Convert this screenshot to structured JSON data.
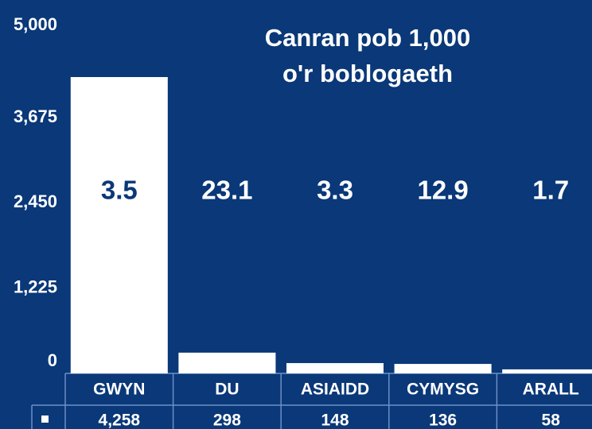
{
  "chart_data": {
    "type": "bar",
    "title": [
      "Canran pob 1,000",
      "o'r boblogaeth"
    ],
    "categories": [
      "GWYN",
      "DU",
      "ASIAIDD",
      "CYMYSG",
      "ARALL"
    ],
    "values": [
      4258,
      298,
      148,
      136,
      58
    ],
    "value_labels": [
      "4,258",
      "298",
      "148",
      "136",
      "58"
    ],
    "annotations": [
      "3.5",
      "23.1",
      "3.3",
      "12.9",
      "1.7"
    ],
    "color": "#ffffff",
    "ylim": [
      0,
      5000
    ],
    "yticks": [
      0,
      {
        "value": 1225,
        "label": "1,225"
      },
      {
        "value": 2450,
        "label": "2,450"
      },
      {
        "value": 3675,
        "label": "3,675"
      },
      {
        "value": 5000,
        "label": "5,000"
      }
    ],
    "grid": false
  }
}
